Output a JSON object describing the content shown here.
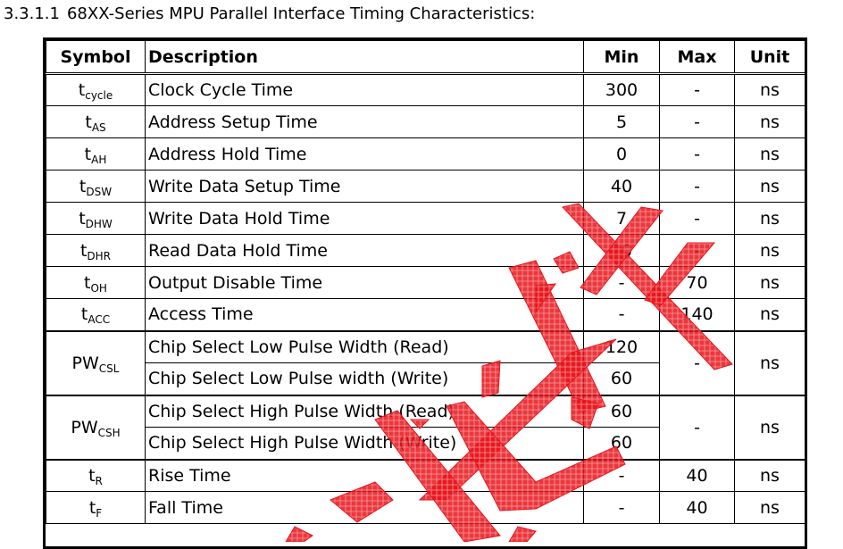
{
  "heading": {
    "number": "3.3.1.1",
    "title": "68XX-Series MPU Parallel Interface Timing Characteristics:"
  },
  "table": {
    "headers": [
      "Symbol",
      "Description",
      "Min",
      "Max",
      "Unit"
    ],
    "rows": [
      {
        "sym": "t",
        "sub": "cycle",
        "desc": "Clock Cycle Time",
        "min": "300",
        "max": "-",
        "unit": "ns"
      },
      {
        "sym": "t",
        "sub": "AS",
        "desc": "Address Setup Time",
        "min": "5",
        "max": "-",
        "unit": "ns"
      },
      {
        "sym": "t",
        "sub": "AH",
        "desc": "Address Hold Time",
        "min": "0",
        "max": "-",
        "unit": "ns"
      },
      {
        "sym": "t",
        "sub": "DSW",
        "desc": "Write Data Setup Time",
        "min": "40",
        "max": "-",
        "unit": "ns"
      },
      {
        "sym": "t",
        "sub": "DHW",
        "desc": "Write Data Hold Time",
        "min": "7",
        "max": "-",
        "unit": "ns"
      },
      {
        "sym": "t",
        "sub": "DHR",
        "desc": "Read Data Hold Time",
        "min": "20",
        "max": "-",
        "unit": "ns"
      },
      {
        "sym": "t",
        "sub": "OH",
        "desc": "Output Disable Time",
        "min": "-",
        "max": "70",
        "unit": "ns"
      },
      {
        "sym": "t",
        "sub": "ACC",
        "desc": "Access Time",
        "min": "-",
        "max": "140",
        "unit": "ns"
      }
    ],
    "pw_csl": {
      "sym": "PW",
      "sub": "CSL",
      "desc_read": "Chip Select Low Pulse Width (Read)",
      "min_read": "120",
      "desc_write": "Chip Select Low Pulse width (Write)",
      "min_write": "60",
      "max": "-",
      "unit": "ns"
    },
    "pw_csh": {
      "sym": "PW",
      "sub": "CSH",
      "desc_read": "Chip Select High Pulse Width (Read)",
      "min_read": "60",
      "desc_write": "Chip Select High Pulse Width (Write)",
      "min_write": "60",
      "max": "-",
      "unit": "ns"
    },
    "rows_tail": [
      {
        "sym": "t",
        "sub": "R",
        "desc": "Rise Time",
        "min": "-",
        "max": "40",
        "unit": "ns"
      },
      {
        "sym": "t",
        "sub": "F",
        "desc": "Fall Time",
        "min": "-",
        "max": "40",
        "unit": "ns"
      }
    ]
  },
  "watermark": {
    "color": "#e8141b"
  }
}
